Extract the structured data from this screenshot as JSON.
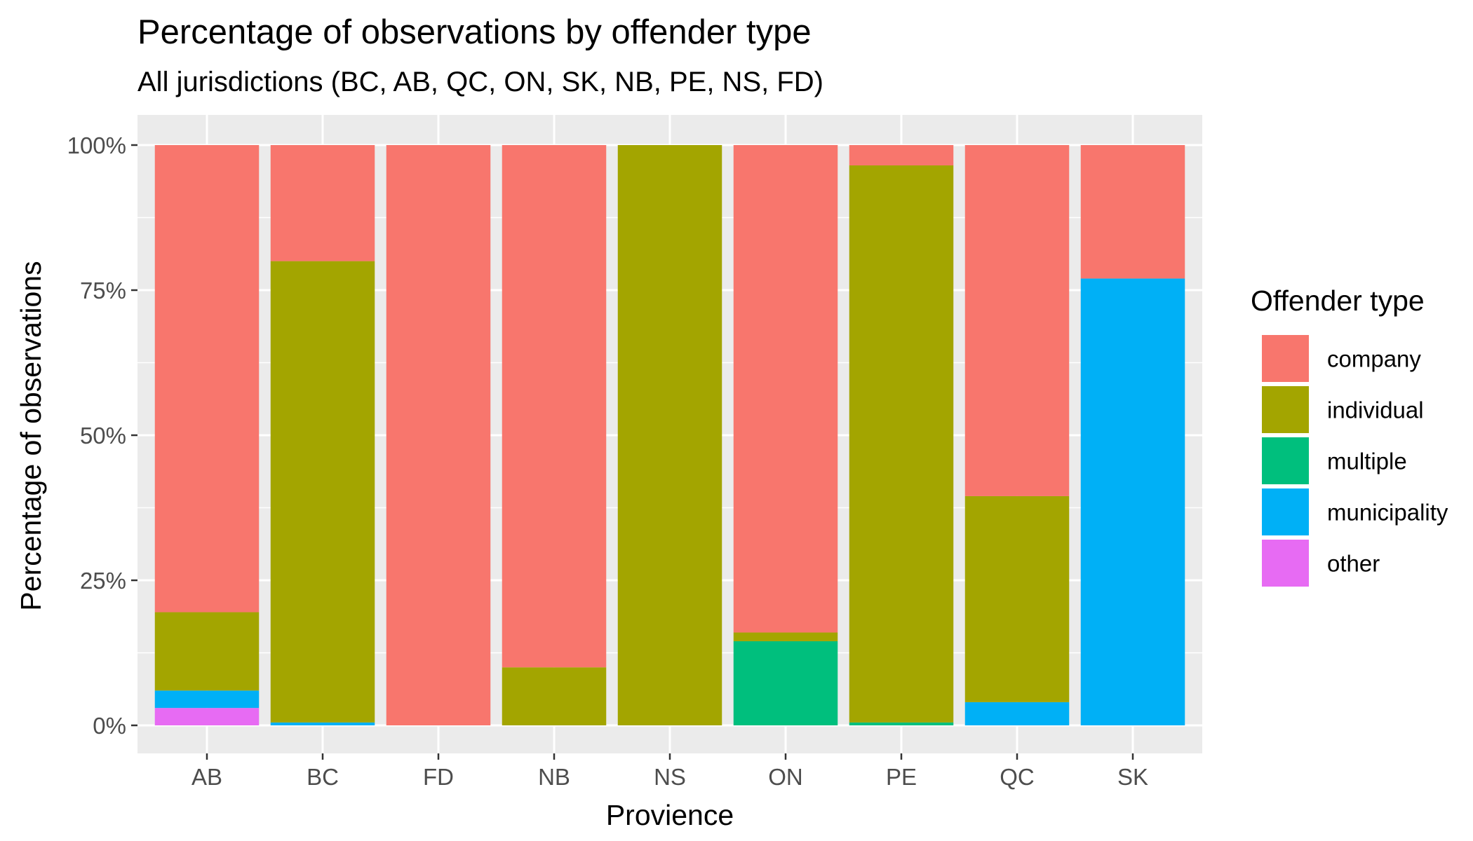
{
  "chart_data": {
    "type": "bar",
    "stacked": true,
    "title": "Percentage of observations by offender type",
    "subtitle": "All jurisdictions (BC, AB, QC, ON, SK, NB, PE, NS, FD)",
    "xlabel": "Provience",
    "ylabel": "Percentage of observations",
    "categories": [
      "AB",
      "BC",
      "FD",
      "NB",
      "NS",
      "ON",
      "PE",
      "QC",
      "SK"
    ],
    "ylim": [
      0,
      1
    ],
    "y_ticks": [
      0,
      0.25,
      0.5,
      0.75,
      1.0
    ],
    "y_tick_labels": [
      "0%",
      "25%",
      "50%",
      "75%",
      "100%"
    ],
    "grid": true,
    "legend": {
      "title": "Offender type",
      "position": "right"
    },
    "series": [
      {
        "name": "company",
        "color": "#F8766D",
        "values": [
          0.805,
          0.2,
          1.0,
          0.9,
          0.0,
          0.84,
          0.035,
          0.605,
          0.23
        ]
      },
      {
        "name": "individual",
        "color": "#A3A500",
        "values": [
          0.135,
          0.795,
          0.0,
          0.1,
          1.0,
          0.015,
          0.96,
          0.355,
          0.0
        ]
      },
      {
        "name": "multiple",
        "color": "#00BF7D",
        "values": [
          0.0,
          0.0,
          0.0,
          0.0,
          0.0,
          0.145,
          0.005,
          0.0,
          0.0
        ]
      },
      {
        "name": "municipality",
        "color": "#00B0F6",
        "values": [
          0.03,
          0.005,
          0.0,
          0.0,
          0.0,
          0.0,
          0.0,
          0.04,
          0.77
        ]
      },
      {
        "name": "other",
        "color": "#E76BF3",
        "values": [
          0.03,
          0.0,
          0.0,
          0.0,
          0.0,
          0.0,
          0.0,
          0.0,
          0.0
        ]
      }
    ]
  }
}
